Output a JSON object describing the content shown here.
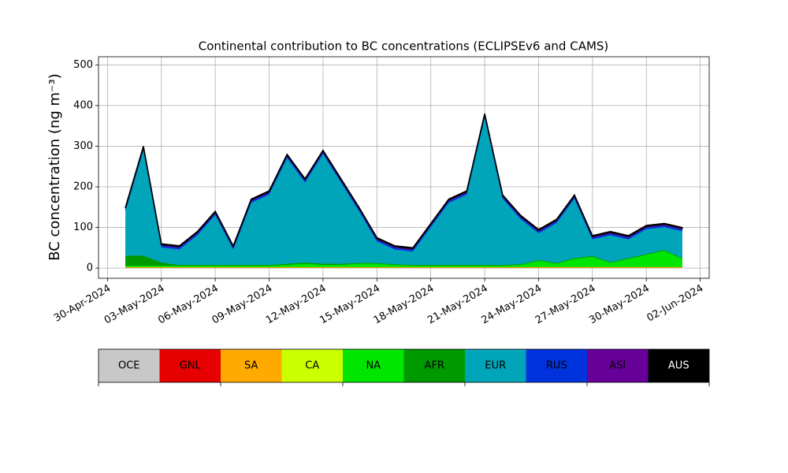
{
  "chart_data": {
    "type": "stacked-area",
    "title": "Continental contribution to BC concentrations (ECLIPSEv6 and CAMS)",
    "y_label": "BC concentration (ng m⁻³)",
    "x": [
      "2024-05-01",
      "2024-05-02",
      "2024-05-03",
      "2024-05-04",
      "2024-05-05",
      "2024-05-06",
      "2024-05-07",
      "2024-05-08",
      "2024-05-09",
      "2024-05-10",
      "2024-05-11",
      "2024-05-12",
      "2024-05-13",
      "2024-05-14",
      "2024-05-15",
      "2024-05-16",
      "2024-05-17",
      "2024-05-18",
      "2024-05-19",
      "2024-05-20",
      "2024-05-21",
      "2024-05-22",
      "2024-05-23",
      "2024-05-24",
      "2024-05-25",
      "2024-05-26",
      "2024-05-27",
      "2024-05-28",
      "2024-05-29",
      "2024-05-30",
      "2024-05-31",
      "2024-06-01"
    ],
    "xlim": [
      "2024-04-29T12:00:00Z",
      "2024-06-02T12:00:00Z"
    ],
    "xticks": [
      {
        "value": "2024-04-30",
        "label": "30-Apr-2024"
      },
      {
        "value": "2024-05-03",
        "label": "03-May-2024"
      },
      {
        "value": "2024-05-06",
        "label": "06-May-2024"
      },
      {
        "value": "2024-05-09",
        "label": "09-May-2024"
      },
      {
        "value": "2024-05-12",
        "label": "12-May-2024"
      },
      {
        "value": "2024-05-15",
        "label": "15-May-2024"
      },
      {
        "value": "2024-05-18",
        "label": "18-May-2024"
      },
      {
        "value": "2024-05-21",
        "label": "21-May-2024"
      },
      {
        "value": "2024-05-24",
        "label": "24-May-2024"
      },
      {
        "value": "2024-05-27",
        "label": "27-May-2024"
      },
      {
        "value": "2024-05-30",
        "label": "30-May-2024"
      },
      {
        "value": "2024-06-02",
        "label": "02-Jun-2024"
      }
    ],
    "ylim": [
      -25,
      520
    ],
    "yticks": [
      0,
      100,
      200,
      300,
      400,
      500
    ],
    "grid": true,
    "series": [
      {
        "name": "OCE",
        "color": "#c8c8c8",
        "values": [
          1,
          1,
          1,
          1,
          1,
          1,
          1,
          1,
          1,
          1,
          1,
          1,
          1,
          1,
          1,
          1,
          1,
          1,
          1,
          1,
          1,
          1,
          1,
          1,
          1,
          1,
          1,
          1,
          1,
          1,
          1,
          1
        ]
      },
      {
        "name": "GNL",
        "color": "#e60000",
        "values": [
          0,
          0,
          0,
          0,
          0,
          0,
          0,
          0,
          0,
          0,
          0,
          0,
          0,
          0,
          0,
          0,
          0,
          0,
          0,
          0,
          0,
          0,
          0,
          0,
          0,
          0,
          0,
          0,
          0,
          0,
          0,
          0
        ]
      },
      {
        "name": "SA",
        "color": "#ffaa00",
        "values": [
          2,
          2,
          2,
          2,
          2,
          2,
          2,
          2,
          2,
          2,
          2,
          2,
          2,
          2,
          2,
          2,
          2,
          2,
          2,
          2,
          2,
          2,
          2,
          2,
          2,
          2,
          2,
          2,
          2,
          2,
          2,
          2
        ]
      },
      {
        "name": "CA",
        "color": "#ccff00",
        "values": [
          0,
          0,
          0,
          0,
          0,
          0,
          0,
          0,
          0,
          0,
          0,
          0,
          0,
          0,
          0,
          0,
          0,
          0,
          0,
          0,
          0,
          0,
          0,
          0,
          0,
          0,
          0,
          0,
          0,
          0,
          0,
          0
        ]
      },
      {
        "name": "NA",
        "color": "#00e600",
        "values": [
          3,
          3,
          3,
          3,
          3,
          3,
          3,
          3,
          3,
          5,
          8,
          5,
          5,
          8,
          8,
          5,
          3,
          3,
          3,
          3,
          3,
          3,
          5,
          15,
          8,
          20,
          25,
          10,
          20,
          30,
          40,
          20
        ]
      },
      {
        "name": "AFR",
        "color": "#009900",
        "values": [
          25,
          25,
          8,
          2,
          2,
          2,
          2,
          2,
          2,
          3,
          3,
          3,
          3,
          2,
          2,
          2,
          2,
          2,
          2,
          2,
          2,
          2,
          2,
          2,
          2,
          2,
          2,
          2,
          2,
          2,
          2,
          2
        ]
      },
      {
        "name": "EUR",
        "color": "#00a5b9",
        "values": [
          110,
          260,
          37,
          38,
          73,
          123,
          38,
          153,
          173,
          260,
          197,
          270,
          200,
          128,
          53,
          36,
          33,
          93,
          153,
          173,
          363,
          163,
          111,
          66,
          98,
          146,
          41,
          66,
          46,
          61,
          56,
          66
        ]
      },
      {
        "name": "RUS",
        "color": "#0033dd",
        "values": [
          4,
          4,
          4,
          4,
          4,
          4,
          4,
          4,
          4,
          4,
          4,
          4,
          4,
          4,
          4,
          4,
          4,
          4,
          4,
          4,
          4,
          4,
          4,
          4,
          4,
          4,
          4,
          4,
          4,
          4,
          4,
          4
        ]
      },
      {
        "name": "ASI",
        "color": "#660099",
        "values": [
          3,
          3,
          3,
          3,
          3,
          3,
          3,
          3,
          3,
          3,
          3,
          3,
          3,
          3,
          3,
          3,
          3,
          3,
          3,
          3,
          3,
          3,
          3,
          3,
          3,
          3,
          3,
          3,
          3,
          3,
          3,
          3
        ]
      },
      {
        "name": "AUS",
        "color": "#000000",
        "values": [
          2,
          2,
          2,
          2,
          2,
          2,
          2,
          2,
          2,
          2,
          2,
          2,
          2,
          2,
          2,
          2,
          2,
          2,
          2,
          2,
          2,
          2,
          2,
          2,
          2,
          2,
          2,
          2,
          2,
          2,
          2,
          2
        ]
      }
    ]
  }
}
